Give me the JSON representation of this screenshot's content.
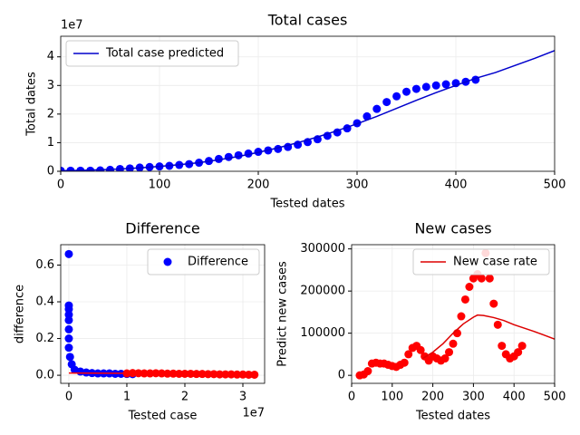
{
  "chart_data": [
    {
      "type": "scatter",
      "title": "Total cases",
      "x_label": "Tested dates",
      "y_label": "Total dates",
      "y_offset_label": "1e7",
      "xlim": [
        0,
        500
      ],
      "xticks": [
        0,
        100,
        200,
        300,
        400,
        500
      ],
      "ylim": [
        0,
        4.72
      ],
      "yticks": [
        0,
        1,
        2,
        3,
        4
      ],
      "grid": true,
      "legend": "upper left",
      "series": [
        {
          "type": "scatter",
          "color": "#0000ff",
          "x": [
            0,
            10,
            20,
            30,
            40,
            50,
            60,
            70,
            80,
            90,
            100,
            110,
            120,
            130,
            140,
            150,
            160,
            170,
            180,
            190,
            200,
            210,
            220,
            230,
            240,
            250,
            260,
            270,
            280,
            290,
            300,
            310,
            320,
            330,
            340,
            350,
            360,
            370,
            380,
            390,
            400,
            410,
            420
          ],
          "values": [
            0.02,
            0.02,
            0.02,
            0.02,
            0.03,
            0.05,
            0.08,
            0.1,
            0.13,
            0.15,
            0.17,
            0.19,
            0.22,
            0.25,
            0.3,
            0.36,
            0.43,
            0.5,
            0.56,
            0.62,
            0.68,
            0.73,
            0.78,
            0.85,
            0.93,
            1.02,
            1.12,
            1.24,
            1.36,
            1.5,
            1.68,
            1.92,
            2.18,
            2.42,
            2.62,
            2.78,
            2.88,
            2.95,
            3.0,
            3.04,
            3.08,
            3.13,
            3.2
          ]
        },
        {
          "type": "line",
          "name": "Total case predicted",
          "color": "#0000cc",
          "x": [
            0,
            20,
            40,
            60,
            80,
            100,
            120,
            140,
            160,
            180,
            200,
            220,
            240,
            260,
            280,
            300,
            320,
            340,
            360,
            380,
            400,
            420,
            440,
            460,
            480,
            500
          ],
          "values": [
            0.02,
            0.03,
            0.05,
            0.08,
            0.12,
            0.17,
            0.23,
            0.3,
            0.4,
            0.52,
            0.66,
            0.82,
            1.0,
            1.2,
            1.42,
            1.66,
            1.92,
            2.2,
            2.48,
            2.75,
            3.0,
            3.25,
            3.45,
            3.7,
            3.95,
            4.22
          ]
        }
      ]
    },
    {
      "type": "scatter",
      "title": "Difference",
      "x_label": "Tested case",
      "y_label": "difference",
      "x_offset_label": "1e7",
      "xlim": [
        -0.14,
        3.375
      ],
      "xticks": [
        0,
        1,
        2,
        3
      ],
      "ylim": [
        -0.044,
        0.711
      ],
      "yticks": [
        {
          "value": 0,
          "label": "0.0"
        },
        0.2,
        0.4,
        0.6
      ],
      "grid": true,
      "legend": "upper right",
      "series": [
        {
          "type": "scatter",
          "name": "Difference",
          "color": "#0000ff",
          "x": [
            0,
            0,
            0,
            0,
            0,
            0,
            0,
            0,
            0.02,
            0.05,
            0.1,
            0.2,
            0.3,
            0.4,
            0.5,
            0.6,
            0.7,
            0.8,
            0.9,
            1.0,
            1.1
          ],
          "values": [
            0.66,
            0.38,
            0.36,
            0.33,
            0.3,
            0.25,
            0.2,
            0.15,
            0.1,
            0.06,
            0.03,
            0.02,
            0.015,
            0.012,
            0.01,
            0.01,
            0.01,
            0.008,
            0.008,
            0.007,
            0.006
          ]
        },
        {
          "type": "scatter",
          "color": "#ff0000",
          "x": [
            1.0,
            1.1,
            1.2,
            1.3,
            1.4,
            1.5,
            1.6,
            1.7,
            1.8,
            1.9,
            2.0,
            2.1,
            2.2,
            2.3,
            2.4,
            2.5,
            2.6,
            2.7,
            2.8,
            2.9,
            3.0,
            3.1,
            3.2
          ],
          "values": [
            0.01,
            0.012,
            0.011,
            0.01,
            0.01,
            0.011,
            0.01,
            0.009,
            0.009,
            0.008,
            0.008,
            0.008,
            0.007,
            0.007,
            0.006,
            0.006,
            0.005,
            0.005,
            0.005,
            0.004,
            0.004,
            0.003,
            0.003
          ]
        },
        {
          "type": "line",
          "color": "#ff0000",
          "x": [
            0,
            3.2
          ],
          "values": [
            0.012,
            0.008
          ]
        }
      ]
    },
    {
      "type": "scatter",
      "title": "New cases",
      "x_label": "Tested dates",
      "y_label": "Predict new cases",
      "xlim": [
        0,
        500
      ],
      "xticks": [
        0,
        100,
        200,
        300,
        400,
        500
      ],
      "ylim": [
        -19000,
        310000
      ],
      "yticks": [
        0,
        100000,
        200000,
        300000
      ],
      "grid": true,
      "legend": "upper right",
      "series": [
        {
          "type": "scatter",
          "color": "#ff0000",
          "x": [
            20,
            30,
            40,
            50,
            60,
            70,
            80,
            90,
            100,
            110,
            120,
            130,
            140,
            150,
            160,
            170,
            180,
            190,
            200,
            210,
            220,
            230,
            240,
            250,
            260,
            270,
            280,
            290,
            300,
            310,
            320,
            330,
            340,
            350,
            360,
            370,
            380,
            390,
            400,
            410,
            420
          ],
          "values": [
            0,
            2000,
            10000,
            28000,
            30000,
            28000,
            28000,
            25000,
            22000,
            20000,
            25000,
            30000,
            50000,
            65000,
            70000,
            60000,
            45000,
            35000,
            45000,
            40000,
            35000,
            40000,
            55000,
            75000,
            100000,
            140000,
            180000,
            210000,
            230000,
            240000,
            230000,
            290000,
            230000,
            170000,
            120000,
            70000,
            50000,
            40000,
            45000,
            55000,
            70000
          ]
        },
        {
          "type": "line",
          "name": "New case rate",
          "color": "#dd0000",
          "x": [
            175,
            200,
            225,
            250,
            275,
            300,
            310,
            325,
            350,
            375,
            400,
            425,
            450,
            475,
            500
          ],
          "values": [
            40000,
            55000,
            75000,
            100000,
            122000,
            138000,
            143000,
            142000,
            137000,
            130000,
            120000,
            112000,
            104000,
            95000,
            86000
          ]
        }
      ]
    }
  ]
}
